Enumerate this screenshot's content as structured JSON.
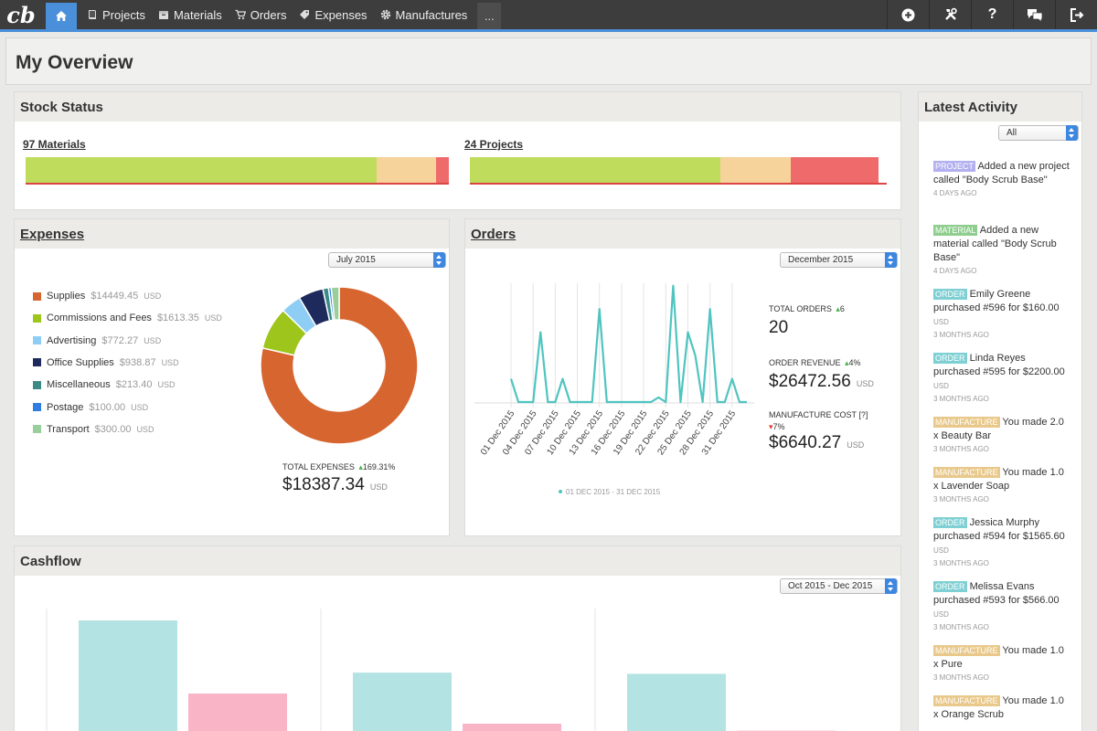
{
  "nav": {
    "logo": "cb",
    "items": [
      {
        "label": "Projects",
        "icon": "book-icon"
      },
      {
        "label": "Materials",
        "icon": "box-icon"
      },
      {
        "label": "Orders",
        "icon": "cart-icon"
      },
      {
        "label": "Expenses",
        "icon": "tag-icon"
      },
      {
        "label": "Manufactures",
        "icon": "gear-icon"
      }
    ],
    "more_label": "...",
    "right_icons": [
      "plus-circle-icon",
      "tools-icon",
      "help-icon",
      "chat-icon",
      "logout-icon"
    ],
    "help_glyph": "?"
  },
  "page": {
    "title": "My Overview"
  },
  "stock": {
    "title": "Stock Status",
    "materials": {
      "label": "97 Materials",
      "segments": [
        {
          "fraction": 0.83,
          "color": "#bfdc5c"
        },
        {
          "fraction": 0.14,
          "color": "#f6d39a"
        },
        {
          "fraction": 0.03,
          "color": "#ef6b6b"
        }
      ]
    },
    "projects": {
      "label": "24 Projects",
      "segments": [
        {
          "fraction": 0.6,
          "color": "#bfdc5c"
        },
        {
          "fraction": 0.17,
          "color": "#f6d39a"
        },
        {
          "fraction": 0.21,
          "color": "#ef6b6b"
        }
      ]
    }
  },
  "expenses": {
    "title": "Expenses",
    "period": "July 2015",
    "categories": [
      {
        "name": "Supplies",
        "amount": "$14449.45",
        "unit": "USD",
        "color": "#d7652f",
        "value": 14449.45
      },
      {
        "name": "Commissions and Fees",
        "amount": "$1613.35",
        "unit": "USD",
        "color": "#9dc51b",
        "value": 1613.35
      },
      {
        "name": "Advertising",
        "amount": "$772.27",
        "unit": "USD",
        "color": "#8ecdf4",
        "value": 772.27
      },
      {
        "name": "Office Supplies",
        "amount": "$938.87",
        "unit": "USD",
        "color": "#1f2a5c",
        "value": 938.87
      },
      {
        "name": "Miscellaneous",
        "amount": "$213.40",
        "unit": "USD",
        "color": "#3a8a86",
        "value": 213.4
      },
      {
        "name": "Postage",
        "amount": "$100.00",
        "unit": "USD",
        "color": "#2f7de0",
        "value": 100.0
      },
      {
        "name": "Transport",
        "amount": "$300.00",
        "unit": "USD",
        "color": "#98cf9b",
        "value": 300.0
      }
    ],
    "total_label": "TOTAL EXPENSES",
    "total_delta": "169.31%",
    "total_value": "$18387.34",
    "total_unit": "USD"
  },
  "orders": {
    "title": "Orders",
    "period": "December 2015",
    "total_orders_label": "TOTAL ORDERS",
    "total_orders_delta": "6",
    "total_orders_value": "20",
    "revenue_label": "ORDER REVENUE",
    "revenue_delta": "4%",
    "revenue_value": "$26472.56",
    "revenue_unit": "USD",
    "mfg_label": "MANUFACTURE COST [?]",
    "mfg_delta": "7%",
    "mfg_value": "$6640.27",
    "mfg_unit": "USD"
  },
  "chart_data": {
    "type": "line",
    "title": "",
    "legend": "01 DEC 2015 - 31 DEC 2015",
    "x_tick_labels": [
      "01 Dec 2015",
      "04 Dec 2015",
      "07 Dec 2015",
      "10 Dec 2015",
      "13 Dec 2015",
      "16 Dec 2015",
      "19 Dec 2015",
      "22 Dec 2015",
      "25 Dec 2015",
      "28 Dec 2015",
      "31 Dec 2015"
    ],
    "series": [
      {
        "name": "Orders",
        "color": "#4fc4c0",
        "values": [
          1,
          0,
          0,
          0,
          3,
          0,
          0,
          1,
          0,
          0,
          0,
          0,
          4,
          0,
          0,
          0,
          0,
          0,
          0,
          0,
          0.2,
          0,
          5,
          0,
          3,
          2,
          0,
          4,
          0,
          0,
          1,
          0,
          0
        ]
      }
    ],
    "ylim": [
      0,
      5.5
    ],
    "grid": true
  },
  "cashflow": {
    "title": "Cashflow",
    "period": "Oct 2015 - Dec 2015",
    "groups": [
      {
        "income": 1.0,
        "expense": 0.37
      },
      {
        "income": 0.55,
        "expense": 0.11
      },
      {
        "income": 0.54,
        "expense": 0.05
      }
    ],
    "income_color": "#b4e3e3",
    "expense_color": "#f9b4c6"
  },
  "activity": {
    "title": "Latest Activity",
    "filter": "All",
    "items": [
      {
        "tag": "PROJECT",
        "tag_color": "#b3b0ef",
        "text": "Added a new project called \"Body Scrub Base\"",
        "ago": "4 DAYS AGO"
      },
      {
        "tag": "MATERIAL",
        "tag_color": "#8fce8f",
        "text": "Added a new material called \"Body Scrub Base\"",
        "ago": "4 DAYS AGO"
      },
      {
        "tag": "ORDER",
        "tag_color": "#7fd0d4",
        "text": "Emily Greene purchased #596 for $160.00",
        "unit": "USD",
        "ago": "3 MONTHS AGO"
      },
      {
        "tag": "ORDER",
        "tag_color": "#7fd0d4",
        "text": "Linda Reyes purchased #595 for $2200.00",
        "unit": "USD",
        "ago": "3 MONTHS AGO"
      },
      {
        "tag": "MANUFACTURE",
        "tag_color": "#e9c98b",
        "text": "You made 2.0 x Beauty Bar",
        "ago": "3 MONTHS AGO"
      },
      {
        "tag": "MANUFACTURE",
        "tag_color": "#e9c98b",
        "text": "You made 1.0 x Lavender Soap",
        "ago": "3 MONTHS AGO"
      },
      {
        "tag": "ORDER",
        "tag_color": "#7fd0d4",
        "text": "Jessica Murphy purchased #594 for $1565.60",
        "unit": "USD",
        "ago": "3 MONTHS AGO"
      },
      {
        "tag": "ORDER",
        "tag_color": "#7fd0d4",
        "text": "Melissa Evans purchased #593 for $566.00",
        "unit": "USD",
        "ago": "3 MONTHS AGO"
      },
      {
        "tag": "MANUFACTURE",
        "tag_color": "#e9c98b",
        "text": "You made 1.0 x Pure",
        "ago": "3 MONTHS AGO"
      },
      {
        "tag": "MANUFACTURE",
        "tag_color": "#e9c98b",
        "text": "You made 1.0 x Orange Scrub",
        "ago": ""
      }
    ]
  }
}
